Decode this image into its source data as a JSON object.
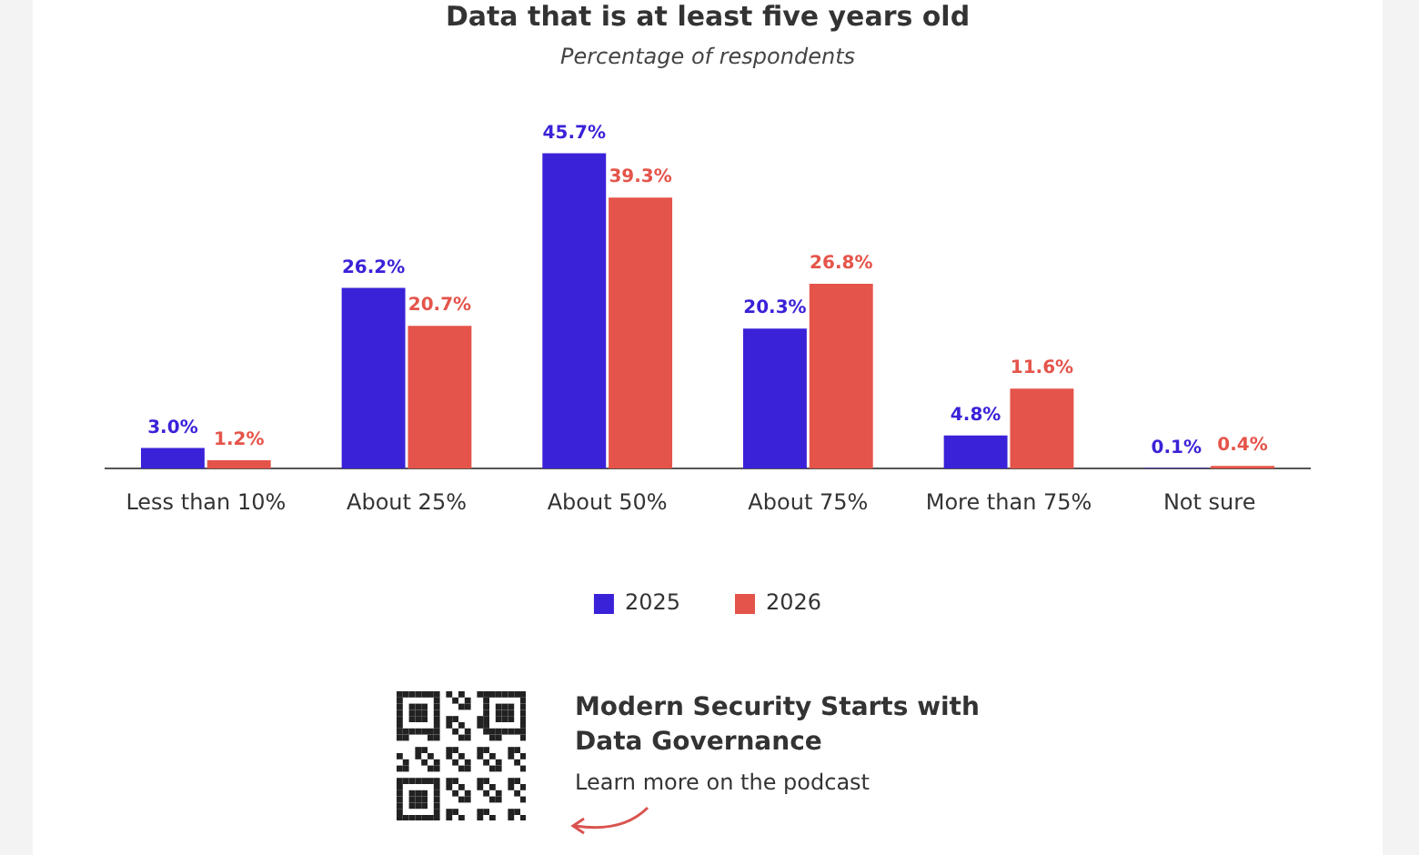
{
  "chart_data": {
    "type": "bar",
    "title": "Data that is at least five years old",
    "subtitle": "Percentage of respondents",
    "categories": [
      "Less than 10%",
      "About 25%",
      "About 50%",
      "About 75%",
      "More than 75%",
      "Not sure"
    ],
    "series": [
      {
        "name": "2025",
        "color": "#3a22d8",
        "values": [
          3.0,
          26.2,
          45.7,
          20.3,
          4.8,
          0.1
        ],
        "value_labels": [
          "3.0%",
          "26.2%",
          "45.7%",
          "20.3%",
          "4.8%",
          "0.1%"
        ]
      },
      {
        "name": "2026",
        "color": "#e5544a",
        "values": [
          1.2,
          20.7,
          39.3,
          26.8,
          11.6,
          0.4
        ],
        "value_labels": [
          "1.2%",
          "20.7%",
          "39.3%",
          "26.8%",
          "11.6%",
          "0.4%"
        ]
      }
    ],
    "legend": "bottom",
    "grid": false,
    "annotations": [
      "Modern Security Starts with Data Governance",
      "Learn more on the podcast"
    ]
  }
}
